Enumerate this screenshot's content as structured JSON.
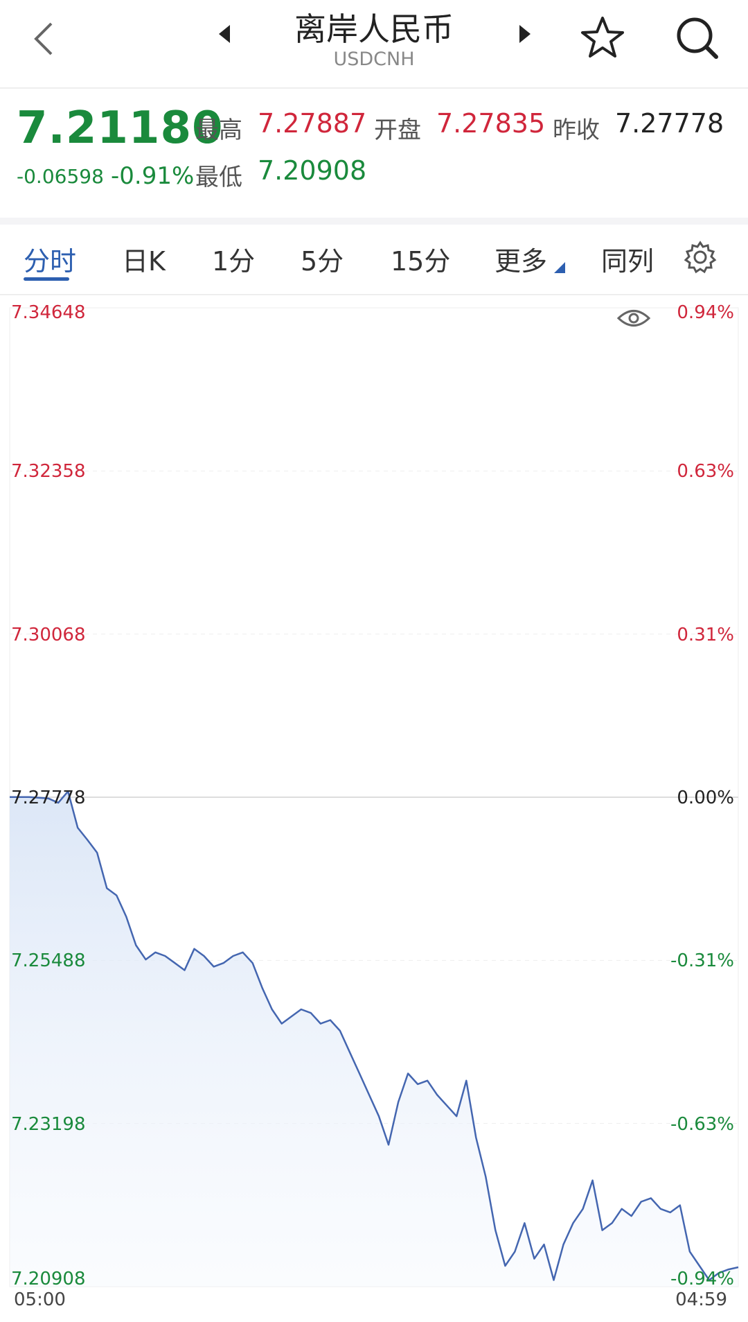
{
  "header": {
    "title": "离岸人民币",
    "subtitle": "USDCNH"
  },
  "quote": {
    "price": "7.21180",
    "change": "-0.06598",
    "change_pct": "-0.91%",
    "high_label": "最高",
    "high": "7.27887",
    "open_label": "开盘",
    "open": "7.27835",
    "prev_close_label": "昨收",
    "prev_close": "7.27778",
    "low_label": "最低",
    "low": "7.20908"
  },
  "tabs": [
    {
      "label": "分时",
      "active": true
    },
    {
      "label": "日K",
      "active": false
    },
    {
      "label": "1分",
      "active": false
    },
    {
      "label": "5分",
      "active": false
    },
    {
      "label": "15分",
      "active": false
    },
    {
      "label": "更多",
      "active": false
    },
    {
      "label": "同列",
      "active": false
    }
  ],
  "colors": {
    "up": "#d0263b",
    "down": "#1a8a3c",
    "accent": "#2d5fb0",
    "line": "#4466b0"
  },
  "chart_data": {
    "type": "area",
    "ylim": [
      7.20908,
      7.34648
    ],
    "baseline": 7.27778,
    "price_ticks": [
      "7.34648",
      "7.32358",
      "7.30068",
      "7.27778",
      "7.25488",
      "7.23198",
      "7.20908"
    ],
    "pct_ticks": [
      "0.94%",
      "0.63%",
      "0.31%",
      "0.00%",
      "-0.31%",
      "-0.63%",
      "-0.94%"
    ],
    "x_start_label": "05:00",
    "x_end_label": "04:59",
    "series": [
      {
        "values": [
          7.2778,
          7.2778,
          7.2778,
          7.2777,
          7.2776,
          7.277,
          7.2786,
          7.2735,
          7.2718,
          7.27,
          7.265,
          7.264,
          7.261,
          7.257,
          7.255,
          7.256,
          7.2555,
          7.2545,
          7.2535,
          7.2565,
          7.2555,
          7.254,
          7.2545,
          7.2555,
          7.256,
          7.2545,
          7.251,
          7.248,
          7.246,
          7.247,
          7.248,
          7.2475,
          7.246,
          7.2465,
          7.245,
          7.242,
          7.239,
          7.236,
          7.233,
          7.229,
          7.235,
          7.239,
          7.2375,
          7.238,
          7.236,
          7.2345,
          7.233,
          7.238,
          7.23,
          7.2245,
          7.217,
          7.212,
          7.214,
          7.218,
          7.213,
          7.215,
          7.21,
          7.215,
          7.218,
          7.22,
          7.224,
          7.217,
          7.218,
          7.22,
          7.219,
          7.221,
          7.2215,
          7.22,
          7.2195,
          7.2205,
          7.214,
          7.212,
          7.21,
          7.211,
          7.2115,
          7.2118
        ]
      }
    ]
  }
}
